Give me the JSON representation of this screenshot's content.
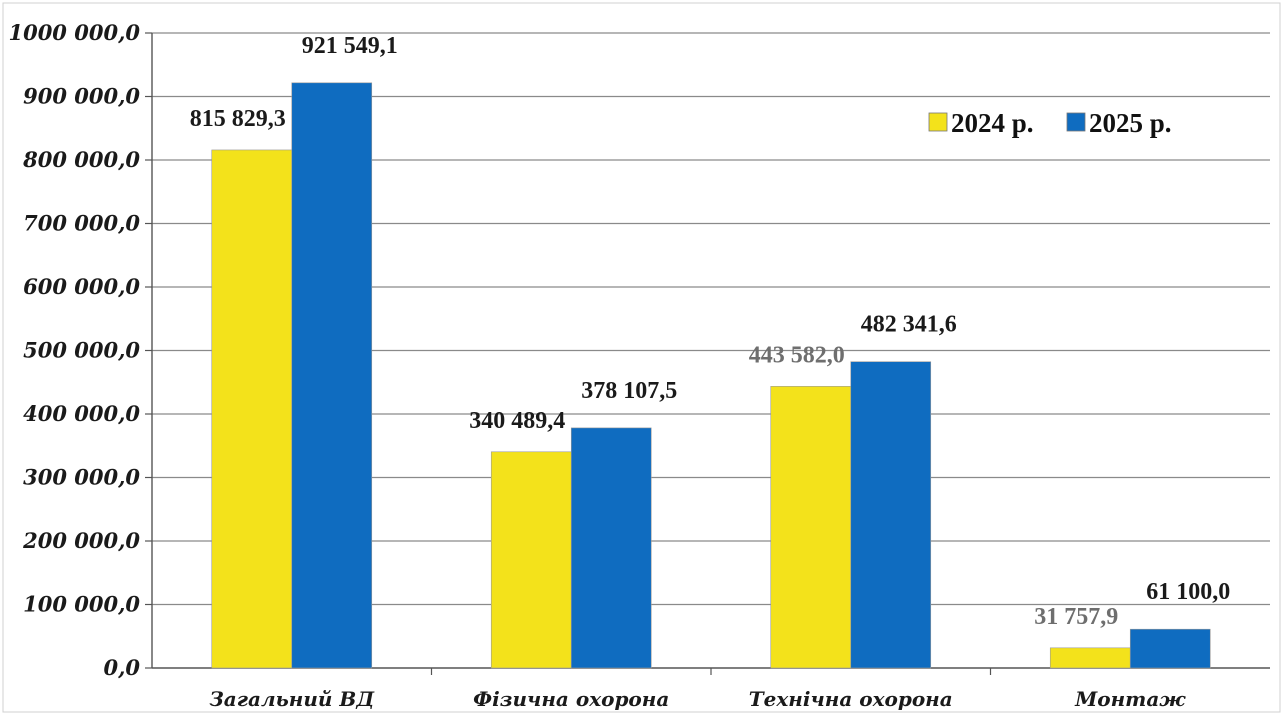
{
  "chart_data": {
    "type": "bar",
    "categories": [
      "Загальний ВД",
      "Фізична охорона",
      "Технічна охорона",
      "Монтаж"
    ],
    "series": [
      {
        "name": "2024 р.",
        "color": "#f3e21b",
        "values": [
          815829.3,
          340489.4,
          443582.0,
          31757.9
        ],
        "labels": [
          "815 829,3",
          "340 489,4",
          "443 582,0",
          "31 757,9"
        ]
      },
      {
        "name": "2025 р.",
        "color": "#0f6cc0",
        "values": [
          921549.1,
          378107.5,
          482341.6,
          61100.0
        ],
        "labels": [
          "921 549,1",
          "378 107,5",
          "482 341,6",
          "61 100,0"
        ]
      }
    ],
    "ylim": [
      0,
      1000000
    ],
    "yticks": [
      0,
      100000,
      200000,
      300000,
      400000,
      500000,
      600000,
      700000,
      800000,
      900000,
      1000000
    ],
    "ytick_labels": [
      "0,0",
      "100 000,0",
      "200 000,0",
      "300 000,0",
      "400 000,0",
      "500 000,0",
      "600 000,0",
      "700 000,0",
      "800 000,0",
      "900 000,0",
      "1000 000,0"
    ],
    "grid": true,
    "legend_position": "top-right",
    "title": "",
    "xlabel": "",
    "ylabel": ""
  }
}
